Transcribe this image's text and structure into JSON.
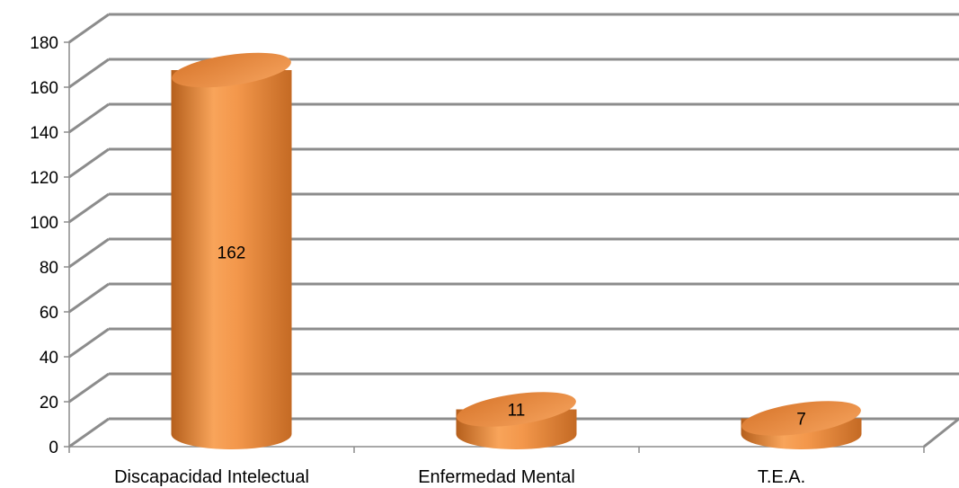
{
  "chart_data": {
    "type": "bar",
    "style": "3d-cylinder",
    "categories": [
      "Discapacidad Intelectual",
      "Enfermedad Mental",
      "T.E.A."
    ],
    "values": [
      162,
      11,
      7
    ],
    "data_labels": [
      "162",
      "11",
      "7"
    ],
    "ylim": [
      0,
      180
    ],
    "yticks": [
      0,
      20,
      40,
      60,
      80,
      100,
      120,
      140,
      160,
      180
    ],
    "ytick_labels": [
      "0",
      "20",
      "40",
      "60",
      "80",
      "100",
      "120",
      "140",
      "160",
      "180"
    ],
    "grid": true,
    "legend": "none",
    "colors": {
      "bar_light": "#F8A45A",
      "bar_mid": "#E8863A",
      "bar_dark": "#B55F1C",
      "gridline": "#8C8C8C"
    }
  }
}
